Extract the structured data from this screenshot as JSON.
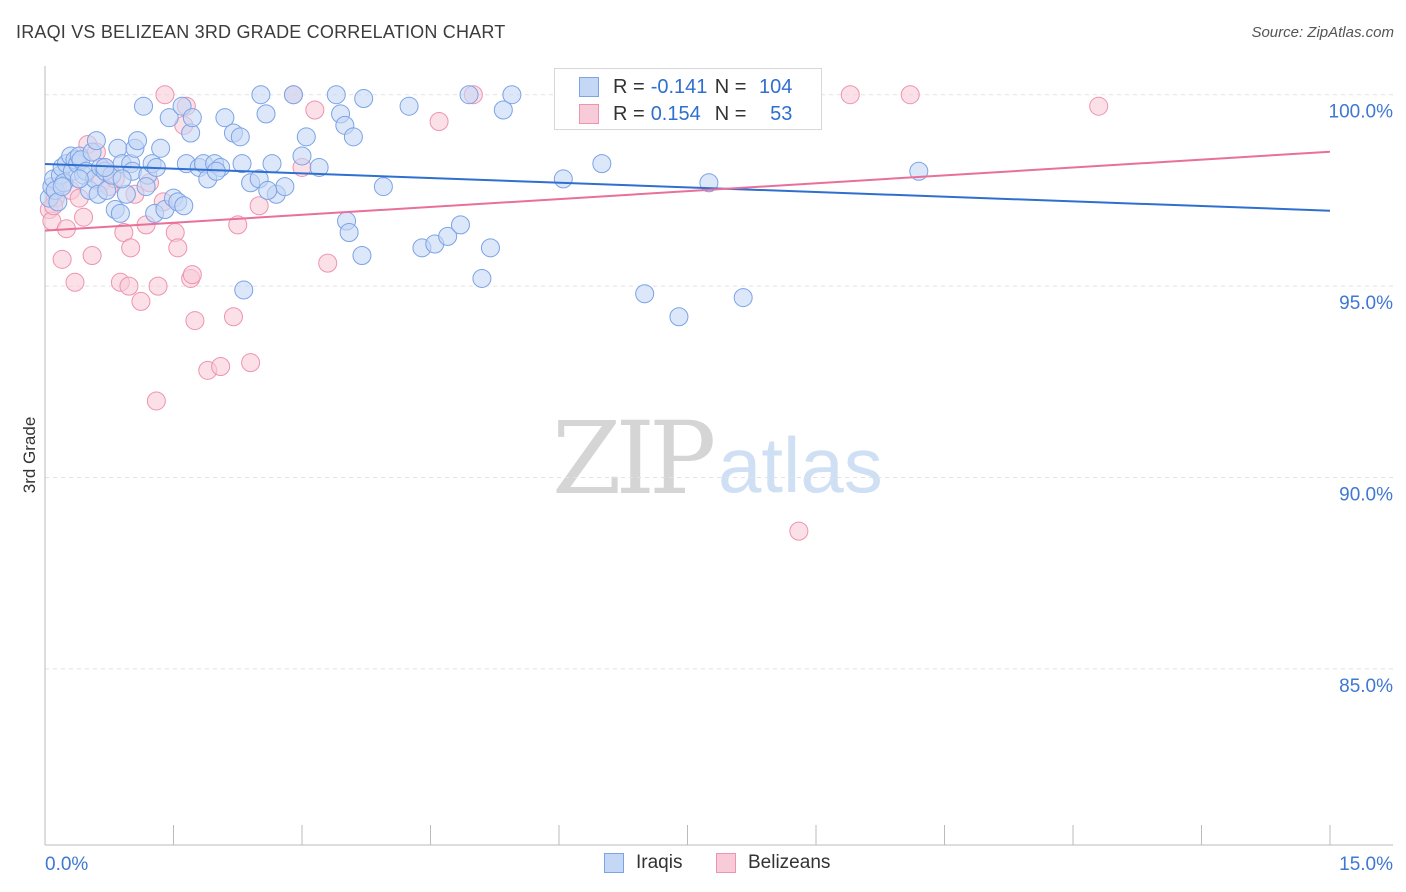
{
  "header": {
    "title": "IRAQI VS BELIZEAN 3RD GRADE CORRELATION CHART",
    "source": "Source: ZipAtlas.com"
  },
  "watermark": {
    "zip": "ZIP",
    "atlas": "atlas"
  },
  "legend": {
    "r_label": "R =",
    "n_label": "N =",
    "iraqis": {
      "r": "-0.141",
      "n": "104"
    },
    "belizeans": {
      "r": "0.154",
      "n": "53"
    }
  },
  "bottom_legend": {
    "iraqis": "Iraqis",
    "belizeans": "Belizeans"
  },
  "colors": {
    "blue_fill": "#c4d7f5",
    "blue_stroke": "#7ba3e6",
    "blue_line": "#2f6fd0",
    "pink_fill": "#f8cbd8",
    "pink_stroke": "#ee93b0",
    "pink_line": "#e8709a",
    "tick_text": "#3f78d1"
  },
  "chart_data": {
    "type": "scatter",
    "title": "IRAQI VS BELIZEAN 3RD GRADE CORRELATION CHART",
    "xlabel": "",
    "ylabel": "3rd Grade",
    "xlim": [
      0,
      15
    ],
    "ylim": [
      80.4,
      100.75
    ],
    "x_tick_labels": [
      "0.0%",
      "15.0%"
    ],
    "y_ticks": [
      100,
      95,
      90,
      85
    ],
    "y_tick_labels": [
      "100.0%",
      "95.0%",
      "90.0%",
      "85.0%"
    ],
    "grid": true,
    "series": [
      {
        "name": "Iraqis",
        "r": -0.141,
        "n": 104,
        "trend": {
          "x": [
            0,
            15
          ],
          "y": [
            98.19,
            96.97
          ]
        },
        "points": [
          [
            0.05,
            97.3
          ],
          [
            0.08,
            97.6
          ],
          [
            0.1,
            97.8
          ],
          [
            0.12,
            97.5
          ],
          [
            0.15,
            97.2
          ],
          [
            0.18,
            97.9
          ],
          [
            0.2,
            98.1
          ],
          [
            0.22,
            97.7
          ],
          [
            0.25,
            98.2
          ],
          [
            0.3,
            98.4
          ],
          [
            0.32,
            98.0
          ],
          [
            0.35,
            98.3
          ],
          [
            0.38,
            98.2
          ],
          [
            0.4,
            98.4
          ],
          [
            0.42,
            98.3
          ],
          [
            0.45,
            97.9
          ],
          [
            0.48,
            98.0
          ],
          [
            0.52,
            97.5
          ],
          [
            0.55,
            98.5
          ],
          [
            0.58,
            97.8
          ],
          [
            0.6,
            98.8
          ],
          [
            0.62,
            97.4
          ],
          [
            0.65,
            98.1
          ],
          [
            0.7,
            98.0
          ],
          [
            0.72,
            97.5
          ],
          [
            0.78,
            97.9
          ],
          [
            0.82,
            97.0
          ],
          [
            0.85,
            98.6
          ],
          [
            0.88,
            96.9
          ],
          [
            0.9,
            98.2
          ],
          [
            0.95,
            97.4
          ],
          [
            1.0,
            98.2
          ],
          [
            1.02,
            98.0
          ],
          [
            1.05,
            98.6
          ],
          [
            1.08,
            98.8
          ],
          [
            1.15,
            99.7
          ],
          [
            1.2,
            97.9
          ],
          [
            1.25,
            98.2
          ],
          [
            1.28,
            96.9
          ],
          [
            1.3,
            98.1
          ],
          [
            1.35,
            98.6
          ],
          [
            1.4,
            97.0
          ],
          [
            1.45,
            99.4
          ],
          [
            1.5,
            97.3
          ],
          [
            1.55,
            97.2
          ],
          [
            1.6,
            99.7
          ],
          [
            1.62,
            97.1
          ],
          [
            1.65,
            98.2
          ],
          [
            1.7,
            99.0
          ],
          [
            1.72,
            99.4
          ],
          [
            1.8,
            98.1
          ],
          [
            1.85,
            98.2
          ],
          [
            1.9,
            97.8
          ],
          [
            1.98,
            98.2
          ],
          [
            2.05,
            98.1
          ],
          [
            2.1,
            99.4
          ],
          [
            2.2,
            99.0
          ],
          [
            2.28,
            98.9
          ],
          [
            2.3,
            98.2
          ],
          [
            2.4,
            97.7
          ],
          [
            2.5,
            97.8
          ],
          [
            2.52,
            100.0
          ],
          [
            2.58,
            99.5
          ],
          [
            2.65,
            98.2
          ],
          [
            2.7,
            97.4
          ],
          [
            2.8,
            97.6
          ],
          [
            2.9,
            100.0
          ],
          [
            3.0,
            98.4
          ],
          [
            3.05,
            98.9
          ],
          [
            3.2,
            98.1
          ],
          [
            3.4,
            100.0
          ],
          [
            3.45,
            99.5
          ],
          [
            3.5,
            99.2
          ],
          [
            3.6,
            98.9
          ],
          [
            3.72,
            99.9
          ],
          [
            3.95,
            97.6
          ],
          [
            4.25,
            99.7
          ],
          [
            4.4,
            96.0
          ],
          [
            4.55,
            96.1
          ],
          [
            4.7,
            96.3
          ],
          [
            4.85,
            96.6
          ],
          [
            4.95,
            100.0
          ],
          [
            5.1,
            95.2
          ],
          [
            5.2,
            96.0
          ],
          [
            5.35,
            99.6
          ],
          [
            5.45,
            100.0
          ],
          [
            6.05,
            97.8
          ],
          [
            6.5,
            98.2
          ],
          [
            7.0,
            94.8
          ],
          [
            7.4,
            94.2
          ],
          [
            7.75,
            97.7
          ],
          [
            8.15,
            94.7
          ],
          [
            10.2,
            98.0
          ],
          [
            0.9,
            97.8
          ],
          [
            1.18,
            97.6
          ],
          [
            0.7,
            98.1
          ],
          [
            2.0,
            98.0
          ],
          [
            2.6,
            97.5
          ],
          [
            3.52,
            96.7
          ],
          [
            3.55,
            96.4
          ],
          [
            3.7,
            95.8
          ],
          [
            2.32,
            94.9
          ],
          [
            0.4,
            97.8
          ],
          [
            0.2,
            97.6
          ]
        ]
      },
      {
        "name": "Belizeans",
        "r": 0.154,
        "n": 53,
        "trend": {
          "x": [
            0,
            15
          ],
          "y": [
            96.45,
            98.51
          ]
        },
        "points": [
          [
            0.05,
            97.0
          ],
          [
            0.08,
            96.7
          ],
          [
            0.12,
            97.3
          ],
          [
            0.15,
            97.6
          ],
          [
            0.2,
            95.7
          ],
          [
            0.25,
            96.5
          ],
          [
            0.3,
            97.5
          ],
          [
            0.35,
            95.1
          ],
          [
            0.4,
            97.3
          ],
          [
            0.45,
            96.8
          ],
          [
            0.5,
            98.7
          ],
          [
            0.55,
            95.8
          ],
          [
            0.6,
            98.5
          ],
          [
            0.65,
            97.7
          ],
          [
            0.7,
            98.1
          ],
          [
            0.75,
            97.6
          ],
          [
            0.82,
            97.8
          ],
          [
            0.88,
            95.1
          ],
          [
            0.92,
            96.4
          ],
          [
            0.98,
            95.0
          ],
          [
            1.0,
            96.0
          ],
          [
            1.05,
            97.4
          ],
          [
            1.12,
            94.6
          ],
          [
            1.18,
            96.6
          ],
          [
            1.22,
            97.7
          ],
          [
            1.3,
            92.0
          ],
          [
            1.32,
            95.0
          ],
          [
            1.38,
            97.2
          ],
          [
            1.4,
            100.0
          ],
          [
            1.52,
            96.4
          ],
          [
            1.55,
            96.0
          ],
          [
            1.62,
            99.2
          ],
          [
            1.65,
            99.7
          ],
          [
            1.7,
            95.2
          ],
          [
            1.72,
            95.3
          ],
          [
            1.75,
            94.1
          ],
          [
            1.9,
            92.8
          ],
          [
            2.05,
            92.9
          ],
          [
            2.2,
            94.2
          ],
          [
            2.25,
            96.6
          ],
          [
            2.4,
            93.0
          ],
          [
            2.5,
            97.1
          ],
          [
            2.9,
            100.0
          ],
          [
            3.0,
            98.1
          ],
          [
            3.15,
            99.6
          ],
          [
            3.3,
            95.6
          ],
          [
            4.6,
            99.3
          ],
          [
            5.0,
            100.0
          ],
          [
            8.8,
            88.6
          ],
          [
            9.4,
            100.0
          ],
          [
            10.1,
            100.0
          ],
          [
            12.3,
            99.7
          ],
          [
            0.1,
            97.1
          ]
        ]
      }
    ]
  }
}
